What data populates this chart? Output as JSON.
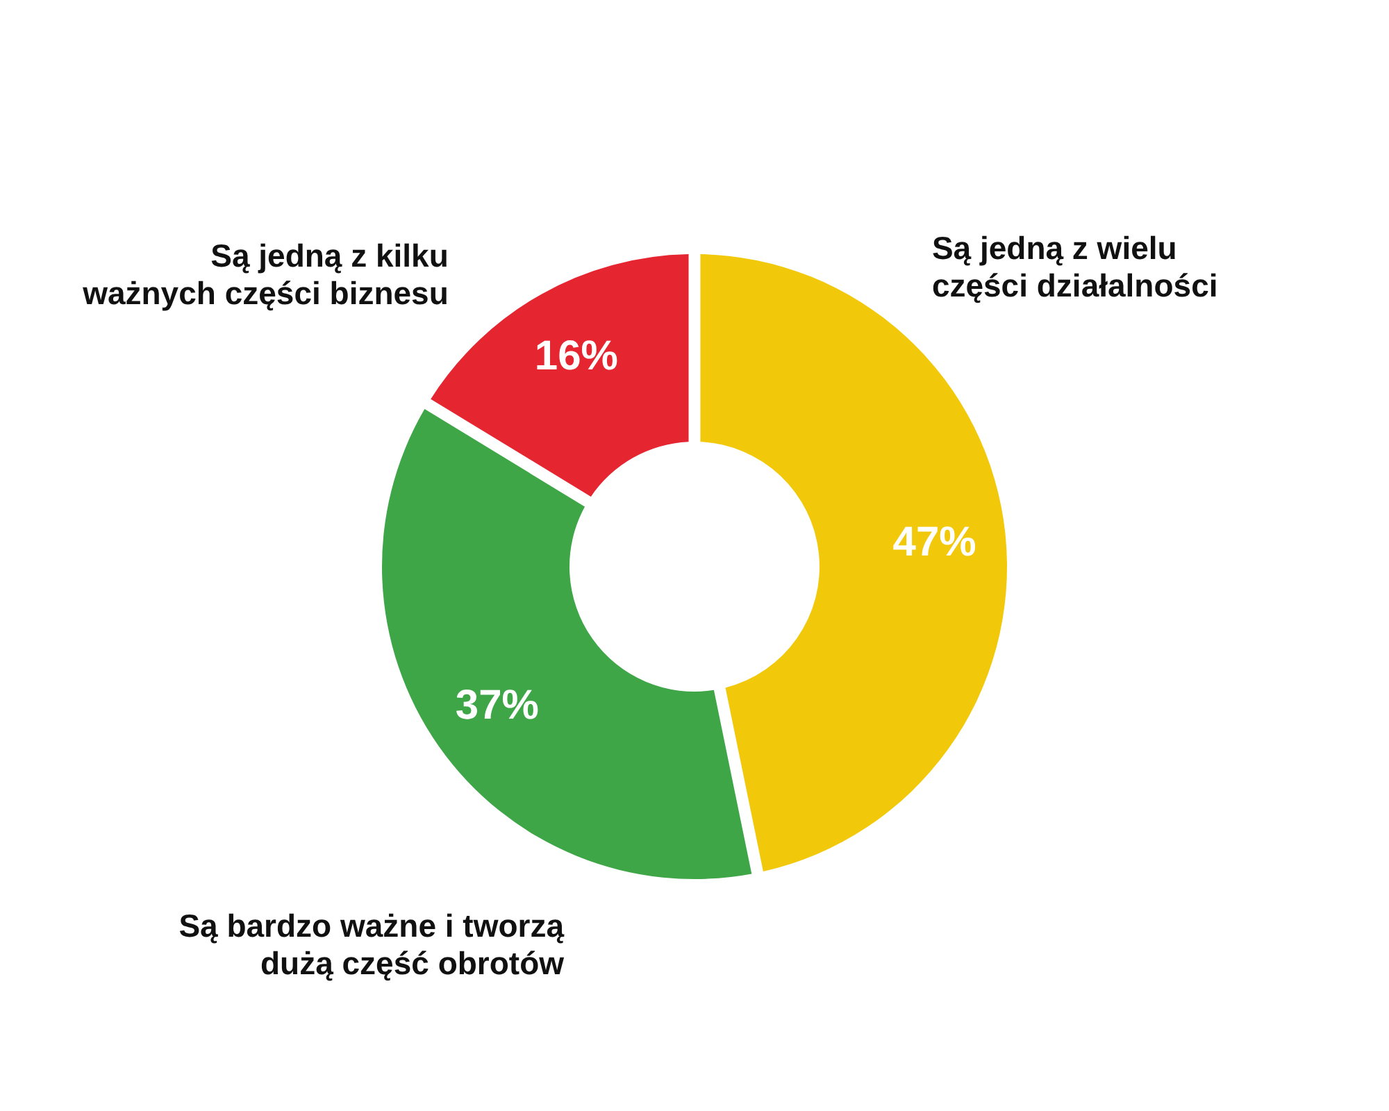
{
  "chart_data": {
    "type": "donut",
    "categories": [
      "Są jedną z wielu części działalności",
      "Są bardzo ważne i tworzą dużą część obrotów",
      "Są jedną z kilku ważnych części biznesu"
    ],
    "values": [
      47,
      37,
      16
    ],
    "colors": [
      "#f2c80a",
      "#3ea647",
      "#e52530"
    ],
    "value_labels": [
      "47%",
      "37%",
      "16%"
    ]
  }
}
